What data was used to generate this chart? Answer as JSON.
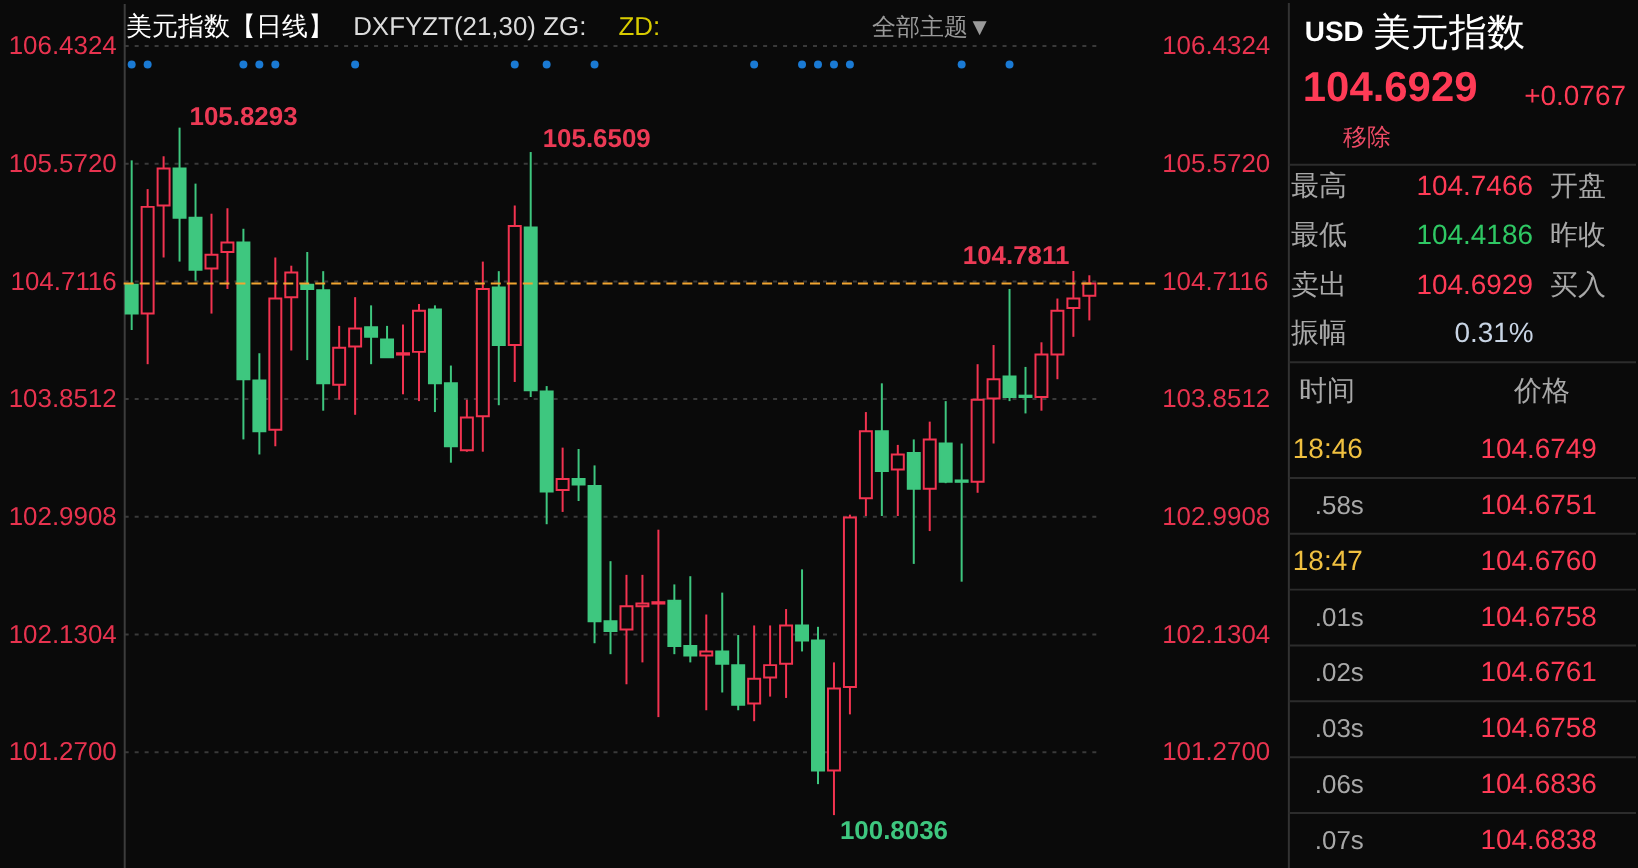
{
  "chart_data": [
    {
      "type": "candlestick",
      "title": "美元指数【日线】",
      "subtitle": "DXFYZT(21,30) ZG:",
      "annotations": [
        "ZD:",
        "全部主题▼",
        "105.8293",
        "105.6509",
        "104.7811",
        "100.8036"
      ],
      "categories": [
        null,
        null,
        null,
        null,
        null,
        null,
        null,
        null,
        null,
        null,
        null,
        null,
        null,
        null,
        null,
        null,
        null,
        null,
        null,
        null,
        null,
        null,
        null,
        null,
        null,
        null,
        null,
        null,
        null,
        null,
        null,
        null,
        null,
        null,
        null,
        null,
        null,
        null,
        null,
        null,
        null,
        null,
        null,
        null,
        null,
        null,
        null,
        null,
        null,
        null,
        null,
        null,
        null,
        null,
        null,
        null,
        null,
        null,
        null,
        null,
        null
      ],
      "ohlc": [
        [
          104.68,
          105.59,
          104.35,
          104.47
        ],
        [
          104.47,
          105.38,
          104.1,
          105.25
        ],
        [
          105.26,
          105.62,
          104.88,
          105.53
        ],
        [
          105.53,
          105.8293,
          104.85,
          105.17
        ],
        [
          105.17,
          105.42,
          104.71,
          104.79
        ],
        [
          104.8,
          105.2,
          104.47,
          104.9
        ],
        [
          104.92,
          105.24,
          104.65,
          104.99
        ],
        [
          104.99,
          105.09,
          103.55,
          103.99
        ],
        [
          103.98,
          104.18,
          103.44,
          103.61
        ],
        [
          103.62,
          104.88,
          103.5,
          104.58
        ],
        [
          104.59,
          104.82,
          104.2,
          104.77
        ],
        [
          104.68,
          104.92,
          104.13,
          104.65
        ],
        [
          104.64,
          104.78,
          103.76,
          103.96
        ],
        [
          103.95,
          104.38,
          103.84,
          104.22
        ],
        [
          104.23,
          104.59,
          103.73,
          104.36
        ],
        [
          104.37,
          104.53,
          104.1,
          104.3
        ],
        [
          104.28,
          104.38,
          104.15,
          104.15
        ],
        [
          104.17,
          104.39,
          103.88,
          104.18
        ],
        [
          104.19,
          104.54,
          103.83,
          104.49
        ],
        [
          104.5,
          104.53,
          103.75,
          103.96
        ],
        [
          103.96,
          104.09,
          103.38,
          103.5
        ],
        [
          103.47,
          103.84,
          103.46,
          103.71
        ],
        [
          103.72,
          104.85,
          103.46,
          104.65
        ],
        [
          104.66,
          104.78,
          103.8,
          104.24
        ],
        [
          104.24,
          105.26,
          103.97,
          105.11
        ],
        [
          105.1,
          105.6509,
          103.86,
          103.91
        ],
        [
          103.9,
          103.94,
          102.93,
          103.17
        ],
        [
          103.18,
          103.49,
          103.02,
          103.26
        ],
        [
          103.26,
          103.48,
          103.1,
          103.22
        ],
        [
          103.21,
          103.36,
          102.06,
          102.22
        ],
        [
          102.22,
          102.66,
          101.98,
          102.15
        ],
        [
          102.16,
          102.56,
          101.76,
          102.33
        ],
        [
          102.33,
          102.56,
          101.92,
          102.35
        ],
        [
          102.35,
          102.89,
          101.52,
          102.36
        ],
        [
          102.37,
          102.49,
          101.98,
          102.04
        ],
        [
          102.04,
          102.55,
          101.92,
          101.97
        ],
        [
          101.97,
          102.27,
          101.57,
          102.0
        ],
        [
          102.0,
          102.43,
          101.7,
          101.91
        ],
        [
          101.9,
          102.12,
          101.57,
          101.61
        ],
        [
          101.62,
          102.19,
          101.49,
          101.8
        ],
        [
          101.81,
          102.19,
          101.67,
          101.9
        ],
        [
          101.91,
          102.31,
          101.66,
          102.19
        ],
        [
          102.19,
          102.6,
          102.0,
          102.08
        ],
        [
          102.08,
          102.18,
          101.03,
          101.13
        ],
        [
          101.13,
          101.92,
          100.8036,
          101.73
        ],
        [
          101.74,
          103.0,
          101.54,
          102.98
        ],
        [
          103.12,
          103.75,
          102.99,
          103.61
        ],
        [
          103.61,
          103.96,
          102.99,
          103.32
        ],
        [
          103.33,
          103.51,
          102.99,
          103.44
        ],
        [
          103.45,
          103.55,
          102.64,
          103.19
        ],
        [
          103.19,
          103.68,
          102.88,
          103.55
        ],
        [
          103.52,
          103.83,
          103.23,
          103.24
        ],
        [
          103.25,
          103.52,
          102.51,
          103.24
        ],
        [
          103.24,
          104.1,
          103.16,
          103.84
        ],
        [
          103.85,
          104.24,
          103.52,
          103.99
        ],
        [
          104.01,
          104.65,
          103.83,
          103.86
        ],
        [
          103.87,
          104.08,
          103.74,
          103.86
        ],
        [
          103.86,
          104.26,
          103.76,
          104.17
        ],
        [
          104.17,
          104.58,
          103.99,
          104.49
        ],
        [
          104.51,
          104.7811,
          104.3,
          104.58
        ],
        [
          104.6,
          104.75,
          104.42,
          104.69
        ]
      ],
      "colors": [
        "#3ec77f",
        "#f23350",
        "#f23350",
        "#3ec77f",
        "#3ec77f",
        "#f23350",
        "#f23350",
        "#3ec77f",
        "#3ec77f",
        "#f23350",
        "#f23350",
        "#3ec77f",
        "#3ec77f",
        "#f23350",
        "#f23350",
        "#3ec77f",
        "#3ec77f",
        "#f23350",
        "#f23350",
        "#3ec77f",
        "#3ec77f",
        "#f23350",
        "#f23350",
        "#3ec77f",
        "#f23350",
        "#3ec77f",
        "#3ec77f",
        "#f23350",
        "#3ec77f",
        "#3ec77f",
        "#3ec77f",
        "#f23350",
        "#f23350",
        "#f23350",
        "#3ec77f",
        "#3ec77f",
        "#f23350",
        "#3ec77f",
        "#3ec77f",
        "#f23350",
        "#f23350",
        "#f23350",
        "#3ec77f",
        "#3ec77f",
        "#f23350",
        "#f23350",
        "#f23350",
        "#3ec77f",
        "#f23350",
        "#3ec77f",
        "#f23350",
        "#3ec77f",
        "#3ec77f",
        "#f23350",
        "#f23350",
        "#3ec77f",
        "#3ec77f",
        "#f23350",
        "#f23350",
        "#f23350",
        "#f23350"
      ],
      "series": [
        {
          "type": "scatter",
          "color": "#1a7ad4",
          "values": [
            106.29,
            106.29,
            null,
            null,
            null,
            null,
            null,
            106.29,
            106.29,
            106.29,
            null,
            null,
            null,
            null,
            106.29,
            null,
            null,
            null,
            null,
            null,
            null,
            null,
            null,
            null,
            106.29,
            null,
            106.29,
            null,
            null,
            106.29,
            null,
            null,
            null,
            null,
            null,
            null,
            null,
            null,
            null,
            106.29,
            null,
            null,
            106.29,
            106.29,
            106.29,
            106.29,
            null,
            null,
            null,
            null,
            null,
            null,
            106.29,
            null,
            null,
            106.29,
            null,
            null,
            null,
            null,
            null
          ]
        }
      ],
      "marker": "circle",
      "ylim": [
        100.41,
        106.74
      ],
      "yticks": [
        106.4324,
        {
          "value": 105.572,
          "label": "105.5720"
        },
        104.7116,
        103.8512,
        102.9908,
        102.1304,
        {
          "value": 101.27,
          "label": "101.2700"
        }
      ],
      "y2lim": [
        100.41,
        106.74
      ],
      "y2ticks": [
        106.4324,
        {
          "value": 105.572,
          "label": "105.5720"
        },
        104.7116,
        103.8512,
        102.9908,
        102.1304,
        {
          "value": 101.27,
          "label": "101.2700"
        }
      ],
      "grid": "y",
      "ref_lines": [
        {
          "axis": "y2",
          "value": 104.69,
          "color": "#f2a531",
          "line_style": "dashed"
        }
      ]
    },
    {
      "type": "other",
      "annotations": [
        "USD",
        "美元指数",
        "104.6929",
        "+0.0767",
        "移除",
        "最高",
        "104.7466",
        "开盘",
        "最低",
        "104.4186",
        "昨收",
        "卖出",
        "104.6929",
        "买入",
        "振幅",
        "0.31%",
        "时间",
        "价格",
        "18:46",
        "104.6749",
        ".58s",
        "104.6751",
        "18:47",
        "104.6760",
        ".01s",
        "104.6758",
        ".02s",
        "104.6761",
        ".03s",
        "104.6758",
        ".06s",
        "104.6836",
        ".07s",
        "104.6838"
      ]
    }
  ]
}
